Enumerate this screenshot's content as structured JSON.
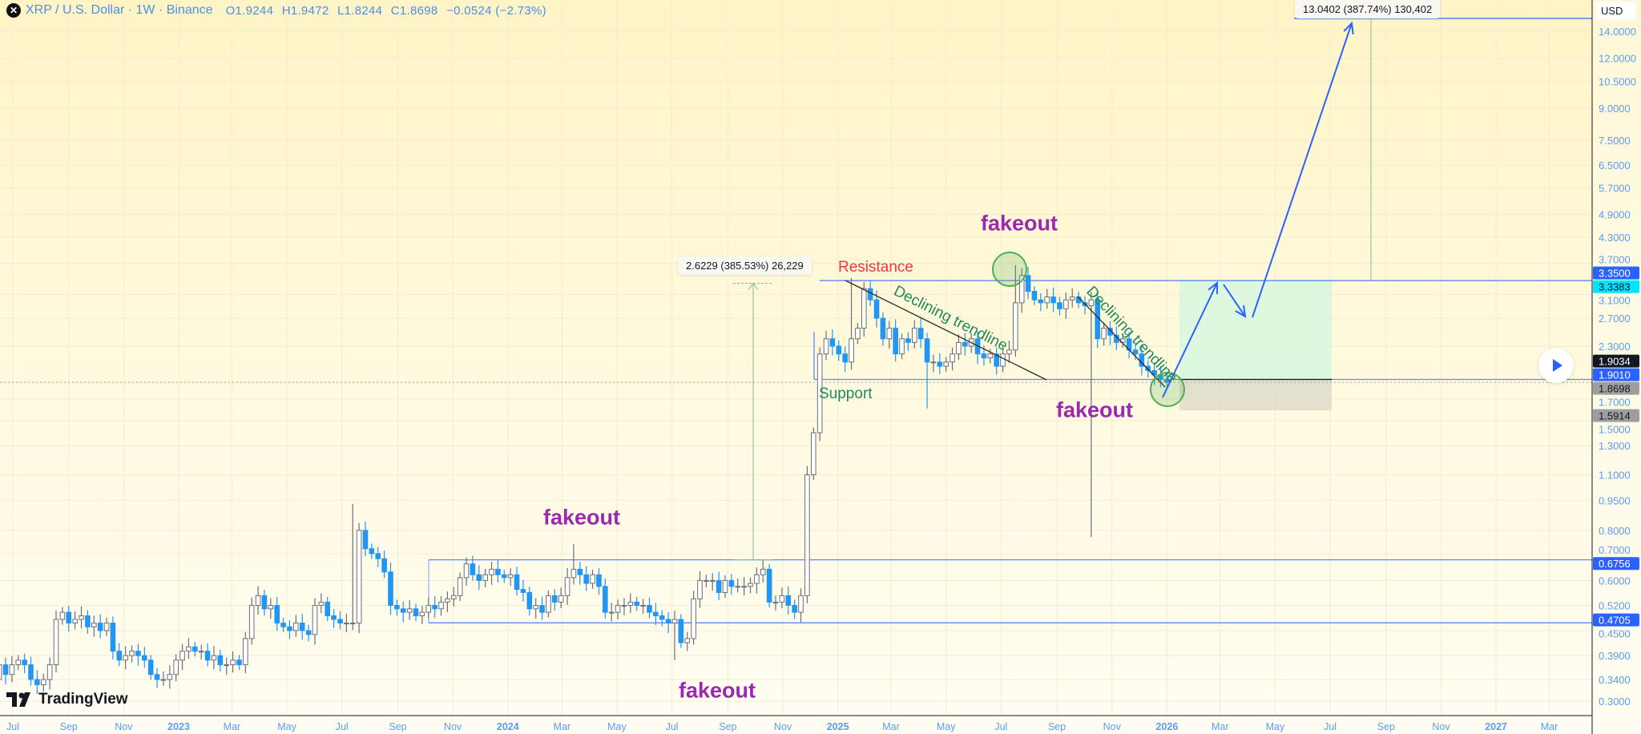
{
  "header": {
    "symbol": "XRP / U.S. Dollar · 1W · Binance",
    "logo_icon": "x-icon",
    "open": "O1.9244",
    "high": "H1.9472",
    "low": "L1.8244",
    "close": "C1.8698",
    "change": "−0.0524 (−2.73%)"
  },
  "currency": "USD",
  "branding": "TradingView",
  "annotations": {
    "resistance": "Resistance",
    "support": "Support",
    "trendline1": "Declining trendline",
    "trendline2": "Declining trendline",
    "fakeout1": "fakeout",
    "fakeout2": "fakeout",
    "fakeout3": "fakeout",
    "fakeout4": "fakeout",
    "measure1": "2.6229 (385.53%) 26,229",
    "measure2": "13.0402 (387.74%) 130,402"
  },
  "colors": {
    "bear": "#2196f3",
    "bull_border": "#6b6f7a",
    "line": "#2962ff",
    "label": "#5b9cf0",
    "resistance": "#f23645",
    "fakeout": "#9c27b0",
    "text_green": "#22875c"
  },
  "chart_data": {
    "type": "candlestick",
    "interval": "1W",
    "y_scale": "log",
    "ylim": [
      0.28,
      15
    ],
    "x_range": [
      "2022-06-15",
      "2027-05-01"
    ],
    "grid": true,
    "x_tick_labels": [
      {
        "label": "Jul",
        "date": "2022-07-01"
      },
      {
        "label": "Sep",
        "date": "2022-09-01"
      },
      {
        "label": "Nov",
        "date": "2022-11-01"
      },
      {
        "label": "2023",
        "date": "2023-01-01",
        "bold": true
      },
      {
        "label": "Mar",
        "date": "2023-03-01"
      },
      {
        "label": "May",
        "date": "2023-05-01"
      },
      {
        "label": "Jul",
        "date": "2023-07-01"
      },
      {
        "label": "Sep",
        "date": "2023-09-01"
      },
      {
        "label": "Nov",
        "date": "2023-11-01"
      },
      {
        "label": "2024",
        "date": "2024-01-01",
        "bold": true
      },
      {
        "label": "Mar",
        "date": "2024-03-01"
      },
      {
        "label": "May",
        "date": "2024-05-01"
      },
      {
        "label": "Jul",
        "date": "2024-07-01"
      },
      {
        "label": "Sep",
        "date": "2024-09-01"
      },
      {
        "label": "Nov",
        "date": "2024-11-01"
      },
      {
        "label": "2025",
        "date": "2025-01-01",
        "bold": true
      },
      {
        "label": "Mar",
        "date": "2025-03-01"
      },
      {
        "label": "May",
        "date": "2025-05-01"
      },
      {
        "label": "Jul",
        "date": "2025-07-01"
      },
      {
        "label": "Sep",
        "date": "2025-09-01"
      },
      {
        "label": "Nov",
        "date": "2025-11-01"
      },
      {
        "label": "2026",
        "date": "2026-01-01",
        "bold": true
      },
      {
        "label": "Mar",
        "date": "2026-03-01"
      },
      {
        "label": "May",
        "date": "2026-05-01"
      },
      {
        "label": "Jul",
        "date": "2026-07-01"
      },
      {
        "label": "Sep",
        "date": "2026-09-01"
      },
      {
        "label": "Nov",
        "date": "2026-11-01"
      },
      {
        "label": "2027",
        "date": "2027-01-01",
        "bold": true
      },
      {
        "label": "Mar",
        "date": "2027-03-01"
      }
    ],
    "y_tick_labels": [
      "14.0000",
      "12.0000",
      "10.5000",
      "9.0000",
      "7.5000",
      "6.5000",
      "5.7000",
      "4.9000",
      "4.3000",
      "3.7000",
      "3.1000",
      "2.7000",
      "2.3000",
      "1.7000",
      "1.5000",
      "1.3000",
      "1.1000",
      "0.9500",
      "0.8000",
      "0.7000",
      "0.6000",
      "0.5200",
      "0.4500",
      "0.3900",
      "0.3400",
      "0.3000"
    ],
    "price_labels": [
      {
        "value": "3.3500",
        "bg": "#2962ff",
        "fg": "#ffffff"
      },
      {
        "value": "3.3383",
        "bg": "#00e5ff",
        "fg": "#131722"
      },
      {
        "value": "1.9034",
        "bg": "#131722",
        "fg": "#ffffff"
      },
      {
        "value": "1.9010",
        "bg": "#2962ff",
        "fg": "#ffffff"
      },
      {
        "value": "1.8698",
        "bg": "#9e9e9e",
        "fg": "#131722"
      },
      {
        "value": "1.5914",
        "bg": "#9e9e9e",
        "fg": "#131722"
      },
      {
        "value": "0.6756",
        "bg": "#2962ff",
        "fg": "#ffffff"
      },
      {
        "value": "0.4705",
        "bg": "#2962ff",
        "fg": "#ffffff"
      }
    ],
    "horizontal_levels": [
      3.35,
      1.901,
      0.6756,
      0.4705
    ],
    "last_price": 1.8698,
    "weekly_closes": [
      0.32,
      0.33,
      0.35,
      0.34,
      0.37,
      0.35,
      0.37,
      0.38,
      0.37,
      0.34,
      0.33,
      0.34,
      0.37,
      0.48,
      0.5,
      0.47,
      0.48,
      0.49,
      0.46,
      0.47,
      0.45,
      0.47,
      0.4,
      0.38,
      0.39,
      0.4,
      0.39,
      0.38,
      0.35,
      0.34,
      0.34,
      0.35,
      0.38,
      0.4,
      0.41,
      0.4,
      0.4,
      0.38,
      0.39,
      0.37,
      0.37,
      0.38,
      0.37,
      0.43,
      0.52,
      0.55,
      0.51,
      0.52,
      0.47,
      0.46,
      0.45,
      0.47,
      0.45,
      0.44,
      0.52,
      0.53,
      0.49,
      0.48,
      0.47,
      0.47,
      0.47,
      0.8,
      0.72,
      0.7,
      0.68,
      0.63,
      0.52,
      0.51,
      0.5,
      0.51,
      0.49,
      0.5,
      0.52,
      0.51,
      0.53,
      0.54,
      0.55,
      0.61,
      0.66,
      0.62,
      0.6,
      0.62,
      0.64,
      0.62,
      0.61,
      0.62,
      0.57,
      0.56,
      0.51,
      0.52,
      0.5,
      0.55,
      0.53,
      0.55,
      0.61,
      0.64,
      0.62,
      0.59,
      0.62,
      0.58,
      0.5,
      0.5,
      0.52,
      0.52,
      0.53,
      0.52,
      0.52,
      0.5,
      0.49,
      0.48,
      0.47,
      0.48,
      0.42,
      0.43,
      0.54,
      0.6,
      0.6,
      0.6,
      0.56,
      0.6,
      0.58,
      0.58,
      0.58,
      0.59,
      0.62,
      0.64,
      0.53,
      0.53,
      0.55,
      0.52,
      0.5,
      0.55,
      1.1,
      1.4,
      2.2,
      2.4,
      2.3,
      2.2,
      2.1,
      2.4,
      2.55,
      3.2,
      3.0,
      2.7,
      2.4,
      2.55,
      2.2,
      2.4,
      2.35,
      2.55,
      2.4,
      2.1,
      2.1,
      2.05,
      2.1,
      2.2,
      2.35,
      2.3,
      2.4,
      2.2,
      2.15,
      2.2,
      2.05,
      2.2,
      2.25,
      2.95,
      3.45,
      3.15,
      3.0,
      2.95,
      3.05,
      2.95,
      2.85,
      3.0,
      3.05,
      2.95,
      2.9,
      3.0,
      2.4,
      2.55,
      2.45,
      2.35,
      2.4,
      2.25,
      2.2,
      2.05,
      2.0,
      1.95,
      1.9,
      1.8698
    ],
    "notable_extremes": [
      {
        "date": "2023-07-13",
        "high": 0.93
      },
      {
        "date": "2024-03-11",
        "high": 0.74
      },
      {
        "date": "2024-07-05",
        "low": 0.38
      },
      {
        "date": "2025-01-16",
        "high": 3.4
      },
      {
        "date": "2025-04-07",
        "low": 1.61
      },
      {
        "date": "2025-07-18",
        "high": 3.66
      },
      {
        "date": "2025-10-10",
        "low": 0.77
      }
    ]
  }
}
